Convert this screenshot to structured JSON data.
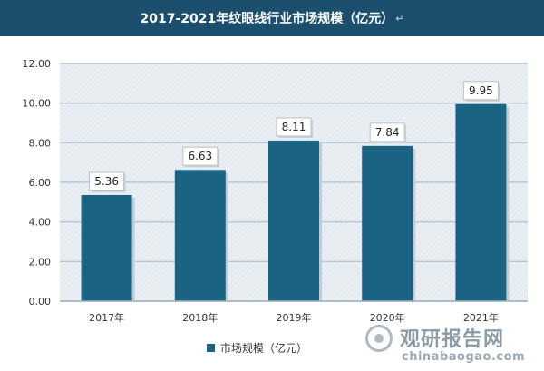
{
  "header": {
    "title": "2017-2021年纹眼线行业市场规模（亿元）",
    "mark": "↵"
  },
  "legend": {
    "label": "市场规模（亿元）"
  },
  "watermark": {
    "cn": "观研报告网",
    "en": "chinabaogao.com"
  },
  "colors": {
    "bar": "#1a6382",
    "header_bg": "#1c4f6e",
    "plot_bg": "#e9eef3",
    "grid": "#b6c8d6"
  },
  "chart_data": {
    "type": "bar",
    "title": "2017-2021年纹眼线行业市场规模（亿元）",
    "categories": [
      "2017年",
      "2018年",
      "2019年",
      "2020年",
      "2021年"
    ],
    "series": [
      {
        "name": "市场规模（亿元）",
        "values": [
          5.36,
          6.63,
          8.11,
          7.84,
          9.95
        ]
      }
    ],
    "value_labels": [
      "5.36",
      "6.63",
      "8.11",
      "7.84",
      "9.95"
    ],
    "y_ticks": [
      "0.00",
      "2.00",
      "4.00",
      "6.00",
      "8.00",
      "10.00",
      "12.00"
    ],
    "ylim": [
      0,
      12
    ],
    "grid": true,
    "legend_position": "bottom"
  }
}
